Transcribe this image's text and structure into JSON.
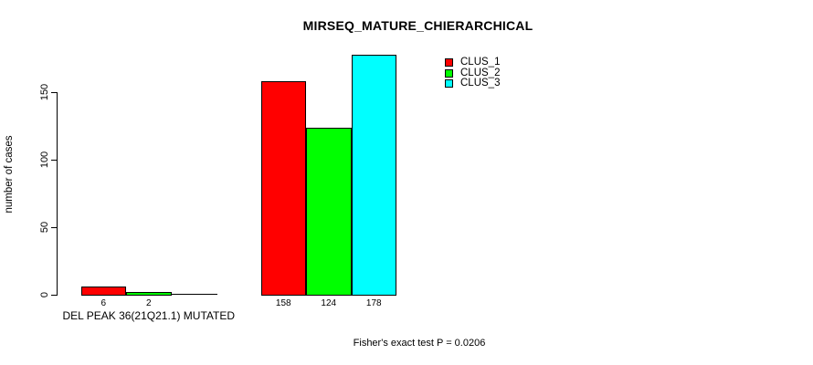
{
  "chart_data": {
    "type": "bar",
    "title": "MIRSEQ_MATURE_CHIERARCHICAL",
    "ylabel": "number of cases",
    "xlabel": "",
    "ylim": [
      0,
      178
    ],
    "grid": false,
    "legend_position": "top-right",
    "bar_border_color": "#000000",
    "yticks": [
      {
        "value": 0,
        "label": "0"
      },
      {
        "value": 50,
        "label": "50"
      },
      {
        "value": 100,
        "label": "100"
      },
      {
        "value": 150,
        "label": "150"
      }
    ],
    "series": [
      {
        "name": "CLUS_1",
        "color": "#FF0000"
      },
      {
        "name": "CLUS_2",
        "color": "#00FF00"
      },
      {
        "name": "CLUS_3",
        "color": "#00FFFF"
      }
    ],
    "groups": [
      {
        "label": "DEL PEAK 36(21Q21.1) MUTATED",
        "values": [
          6,
          2,
          0
        ],
        "value_labels": [
          "6",
          "2",
          ""
        ]
      },
      {
        "label": "",
        "values": [
          158,
          124,
          178
        ],
        "value_labels": [
          "158",
          "124",
          "178"
        ]
      }
    ],
    "footnote": "Fisher's exact test P = 0.0206"
  }
}
